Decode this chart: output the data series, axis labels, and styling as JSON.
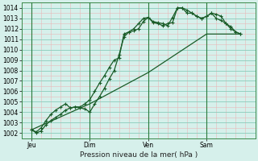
{
  "xlabel": "Pression niveau de la mer( hPa )",
  "bg_color": "#d6f0eb",
  "major_grid_color": "#88ccbb",
  "minor_grid_color": "#e8b8b8",
  "line_color": "#1a5c28",
  "vline_color": "#2a7a3a",
  "ylim": [
    1001.5,
    1014.5
  ],
  "yticks": [
    1002,
    1003,
    1004,
    1005,
    1006,
    1007,
    1008,
    1009,
    1010,
    1011,
    1012,
    1013,
    1014
  ],
  "xlim": [
    0,
    96
  ],
  "xtick_labels": [
    "Jeu",
    "Dim",
    "Ven",
    "Sam"
  ],
  "xtick_positions": [
    4,
    28,
    52,
    76
  ],
  "vline_positions": [
    4,
    28,
    52,
    76
  ],
  "line1_x": [
    4,
    6,
    8,
    10,
    12,
    14,
    16,
    18,
    20,
    22,
    24,
    26,
    28,
    30,
    32,
    34,
    36,
    38,
    40,
    42,
    44,
    46,
    48,
    50,
    52,
    54,
    56,
    58,
    60,
    62,
    64,
    66,
    68,
    70,
    72,
    74,
    76,
    78,
    80,
    82,
    84,
    86,
    88,
    90
  ],
  "line1_y": [
    1002.3,
    1002.1,
    1002.5,
    1003.2,
    1003.8,
    1004.2,
    1004.5,
    1004.8,
    1004.4,
    1004.5,
    1004.5,
    1004.8,
    1005.2,
    1006.0,
    1006.8,
    1007.5,
    1008.3,
    1009.0,
    1009.2,
    1011.5,
    1011.7,
    1011.8,
    1012.0,
    1012.7,
    1013.1,
    1012.7,
    1012.6,
    1012.5,
    1012.3,
    1013.1,
    1014.0,
    1014.0,
    1013.5,
    1013.5,
    1013.2,
    1013.0,
    1013.2,
    1013.5,
    1013.4,
    1013.2,
    1012.5,
    1012.2,
    1011.7,
    1011.5
  ],
  "line2_x": [
    4,
    6,
    8,
    10,
    12,
    14,
    16,
    18,
    20,
    22,
    24,
    26,
    28,
    30,
    32,
    34,
    36,
    38,
    40,
    42,
    44,
    46,
    48,
    50,
    52,
    54,
    56,
    58,
    60,
    62,
    64,
    66,
    68,
    70,
    72,
    74,
    76,
    78,
    80,
    82,
    84,
    86,
    88,
    90
  ],
  "line2_y": [
    1002.3,
    1002.0,
    1002.2,
    1002.8,
    1003.2,
    1003.5,
    1003.8,
    1004.2,
    1004.4,
    1004.5,
    1004.4,
    1004.3,
    1004.0,
    1004.8,
    1005.5,
    1006.3,
    1007.2,
    1008.0,
    1009.5,
    1011.2,
    1011.7,
    1012.0,
    1012.5,
    1013.0,
    1013.1,
    1012.6,
    1012.5,
    1012.3,
    1012.5,
    1012.6,
    1014.0,
    1014.0,
    1013.8,
    1013.5,
    1013.2,
    1013.0,
    1013.2,
    1013.5,
    1013.0,
    1012.8,
    1012.5,
    1012.0,
    1011.7,
    1011.5
  ],
  "line3_x": [
    4,
    28,
    52,
    76,
    90
  ],
  "line3_y": [
    1002.3,
    1004.8,
    1007.8,
    1011.5,
    1011.5
  ],
  "figsize": [
    3.2,
    2.0
  ],
  "dpi": 100
}
